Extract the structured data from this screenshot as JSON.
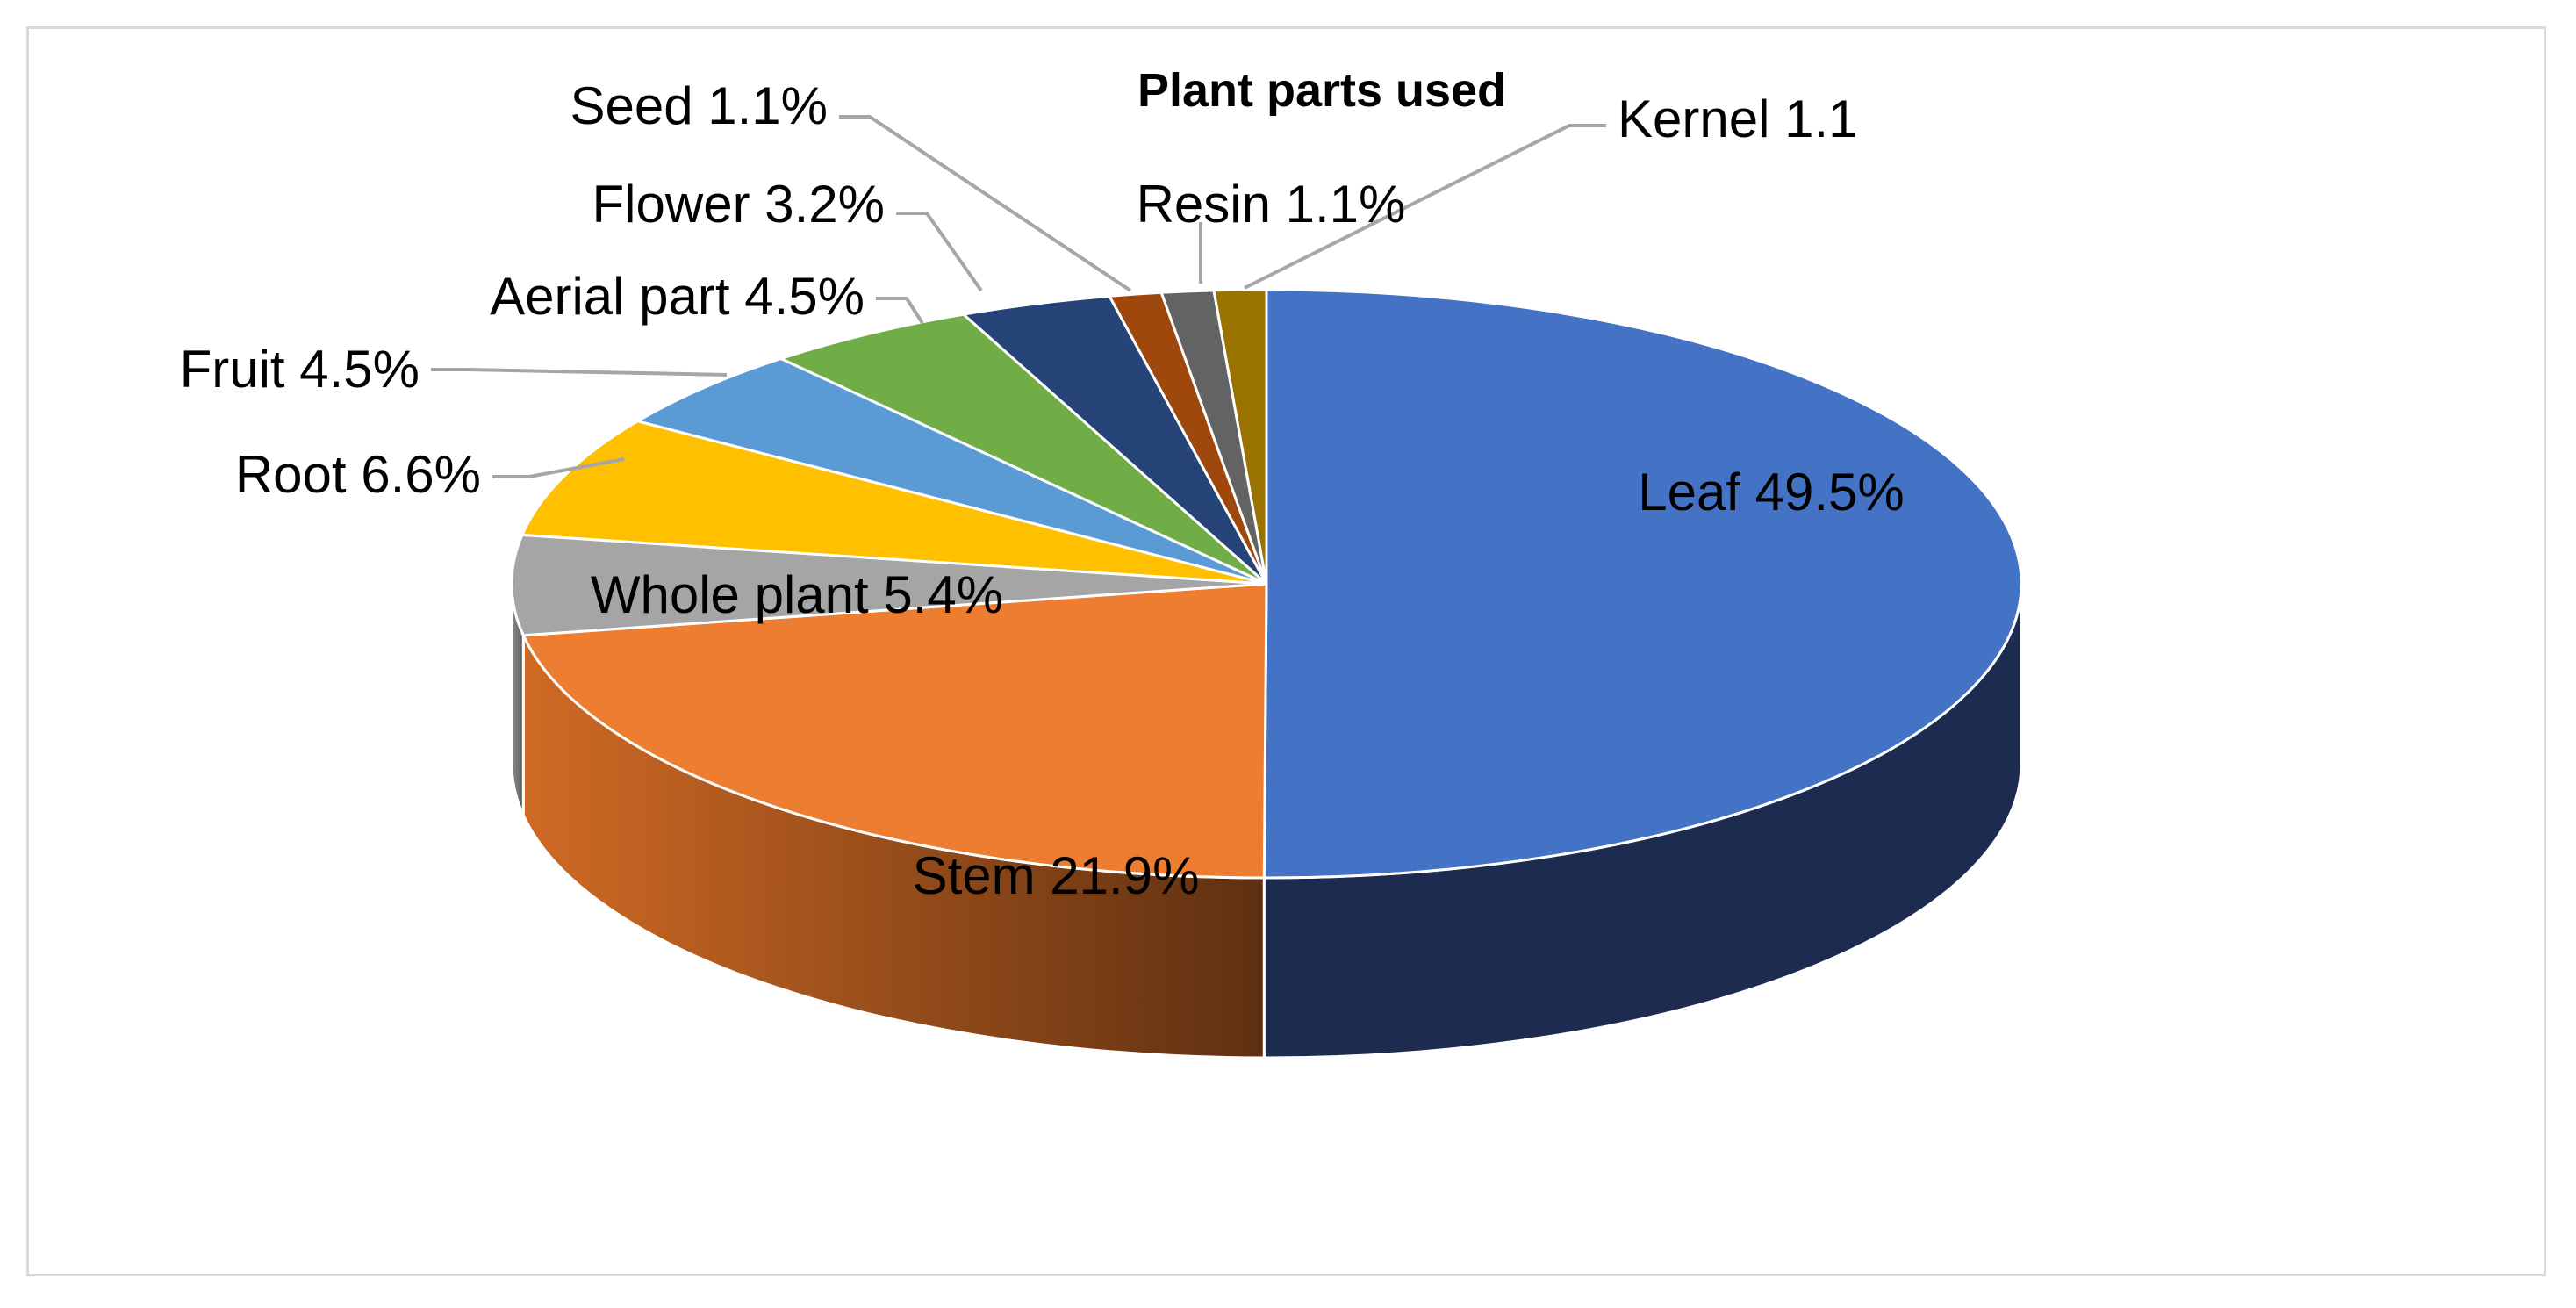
{
  "chart_data": {
    "type": "pie",
    "title": "Plant parts used",
    "style": "3d-exploded-none",
    "slices": [
      {
        "name": "Leaf",
        "label": "Leaf 49.5%",
        "value": 49.5,
        "color": "#4472c4",
        "side_color": "#1c2b4f"
      },
      {
        "name": "Stem",
        "label": "Stem 21.9%",
        "value": 21.9,
        "color": "#ed7d31",
        "side_color": "#a9561d"
      },
      {
        "name": "Whole plant",
        "label": "Whole plant 5.4%",
        "value": 5.4,
        "color": "#a5a5a5",
        "side_color": "#6b6b6b"
      },
      {
        "name": "Root",
        "label": "Root 6.6%",
        "value": 6.6,
        "color": "#ffc000",
        "side_color": "#b38600"
      },
      {
        "name": "Fruit",
        "label": "Fruit 4.5%",
        "value": 4.5,
        "color": "#5b9bd5",
        "side_color": "#3a6ea0"
      },
      {
        "name": "Aerial part",
        "label": "Aerial part 4.5%",
        "value": 4.5,
        "color": "#70ad47",
        "side_color": "#4b7a2e"
      },
      {
        "name": "Flower",
        "label": "Flower 3.2%",
        "value": 3.2,
        "color": "#264478",
        "side_color": "#17294a"
      },
      {
        "name": "Seed",
        "label": "Seed 1.1%",
        "value": 1.1,
        "color": "#9e480e",
        "side_color": "#6a2f08"
      },
      {
        "name": "Resin",
        "label": "Resin 1.1%",
        "value": 1.1,
        "color": "#636363",
        "side_color": "#404040"
      },
      {
        "name": "Kernel",
        "label": "Kernel 1.1",
        "value": 1.1,
        "color": "#997300",
        "side_color": "#6b5000"
      }
    ],
    "leader_color": "#a6a6a6",
    "border_color": "#d9d9d9"
  }
}
